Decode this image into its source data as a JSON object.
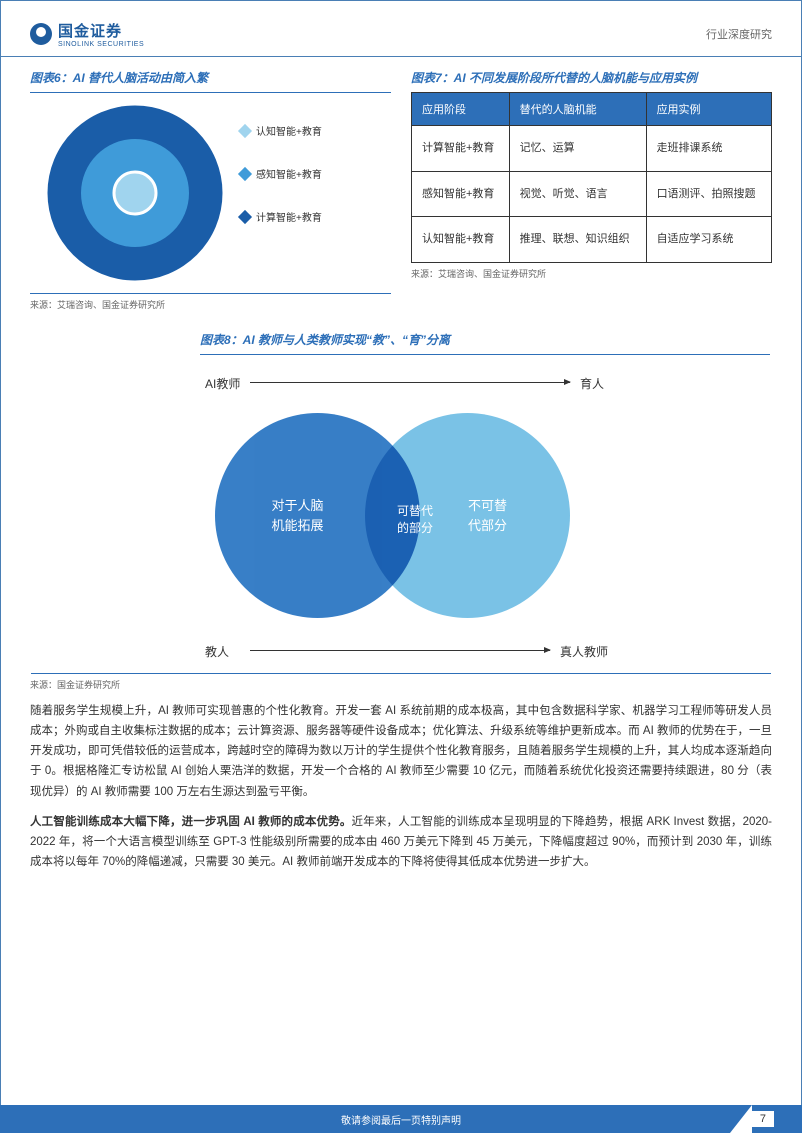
{
  "header": {
    "brand_cn": "国金证券",
    "brand_en": "SINOLINK SECURITIES",
    "right": "行业深度研究"
  },
  "fig6": {
    "title": "图表6：AI 替代人脑活动由简入繁",
    "circles": {
      "outer": {
        "size": 175,
        "color": "#1a5da8"
      },
      "mid": {
        "size": 108,
        "color": "#3f9bd9"
      },
      "inner": {
        "size": 45,
        "color": "#a0d4ee",
        "border": "#ffffff"
      }
    },
    "legend": [
      {
        "label": "认知智能+教育",
        "color": "#a0d4ee"
      },
      {
        "label": "感知智能+教育",
        "color": "#3f9bd9"
      },
      {
        "label": "计算智能+教育",
        "color": "#1a5da8"
      }
    ],
    "source": "来源：艾瑞咨询、国金证券研究所"
  },
  "fig7": {
    "title": "图表7：AI 不同发展阶段所代替的人脑机能与应用实例",
    "headers": [
      "应用阶段",
      "替代的人脑机能",
      "应用实例"
    ],
    "rows": [
      [
        "计算智能+教育",
        "记忆、运算",
        "走班排课系统"
      ],
      [
        "感知智能+教育",
        "视觉、听觉、语言",
        "口语测评、拍照搜题"
      ],
      [
        "认知智能+教育",
        "推理、联想、知识组织",
        "自适应学习系统"
      ]
    ],
    "source": "来源：艾瑞咨询、国金证券研究所"
  },
  "fig8": {
    "title": "图表8：AI 教师与人类教师实现“教”、“育”分离",
    "labels": {
      "top_left": "AI教师",
      "top_right": "育人",
      "bottom_left": "教人",
      "bottom_right": "真人教师"
    },
    "left_circle": {
      "text": "对于人脑\n机能拓展",
      "color": "#2d78c4",
      "opacity": 0.95,
      "size": 205
    },
    "right_circle": {
      "text": "不可替\n代部分",
      "color": "#6bbce4",
      "opacity": 0.9,
      "size": 205
    },
    "overlap_text": "可替代\n的部分",
    "source": "来源：国金证券研究所"
  },
  "paragraphs": {
    "p1": "随着服务学生规模上升，AI 教师可实现普惠的个性化教育。开发一套 AI 系统前期的成本极高，其中包含数据科学家、机器学习工程师等研发人员成本；外购或自主收集标注数据的成本；云计算资源、服务器等硬件设备成本；优化算法、升级系统等维护更新成本。而 AI 教师的优势在于，一旦开发成功，即可凭借较低的运营成本，跨越时空的障碍为数以万计的学生提供个性化教育服务，且随着服务学生规模的上升，其人均成本逐渐趋向于 0。根据格隆汇专访松鼠 AI 创始人栗浩洋的数据，开发一个合格的 AI 教师至少需要 10 亿元，而随着系统优化投资还需要持续跟进，80 分（表现优异）的 AI 教师需要 100 万左右生源达到盈亏平衡。",
    "p2_bold": "人工智能训练成本大幅下降，进一步巩固 AI 教师的成本优势。",
    "p2_rest": "近年来，人工智能的训练成本呈现明显的下降趋势，根据 ARK Invest 数据，2020-2022 年，将一个大语言模型训练至 GPT-3 性能级别所需要的成本由 460 万美元下降到 45 万美元，下降幅度超过 90%，而预计到 2030 年，训练成本将以每年 70%的降幅递减，只需要 30 美元。AI 教师前端开发成本的下降将使得其低成本优势进一步扩大。"
  },
  "footer": {
    "text": "敬请参阅最后一页特别声明",
    "page": "7"
  }
}
